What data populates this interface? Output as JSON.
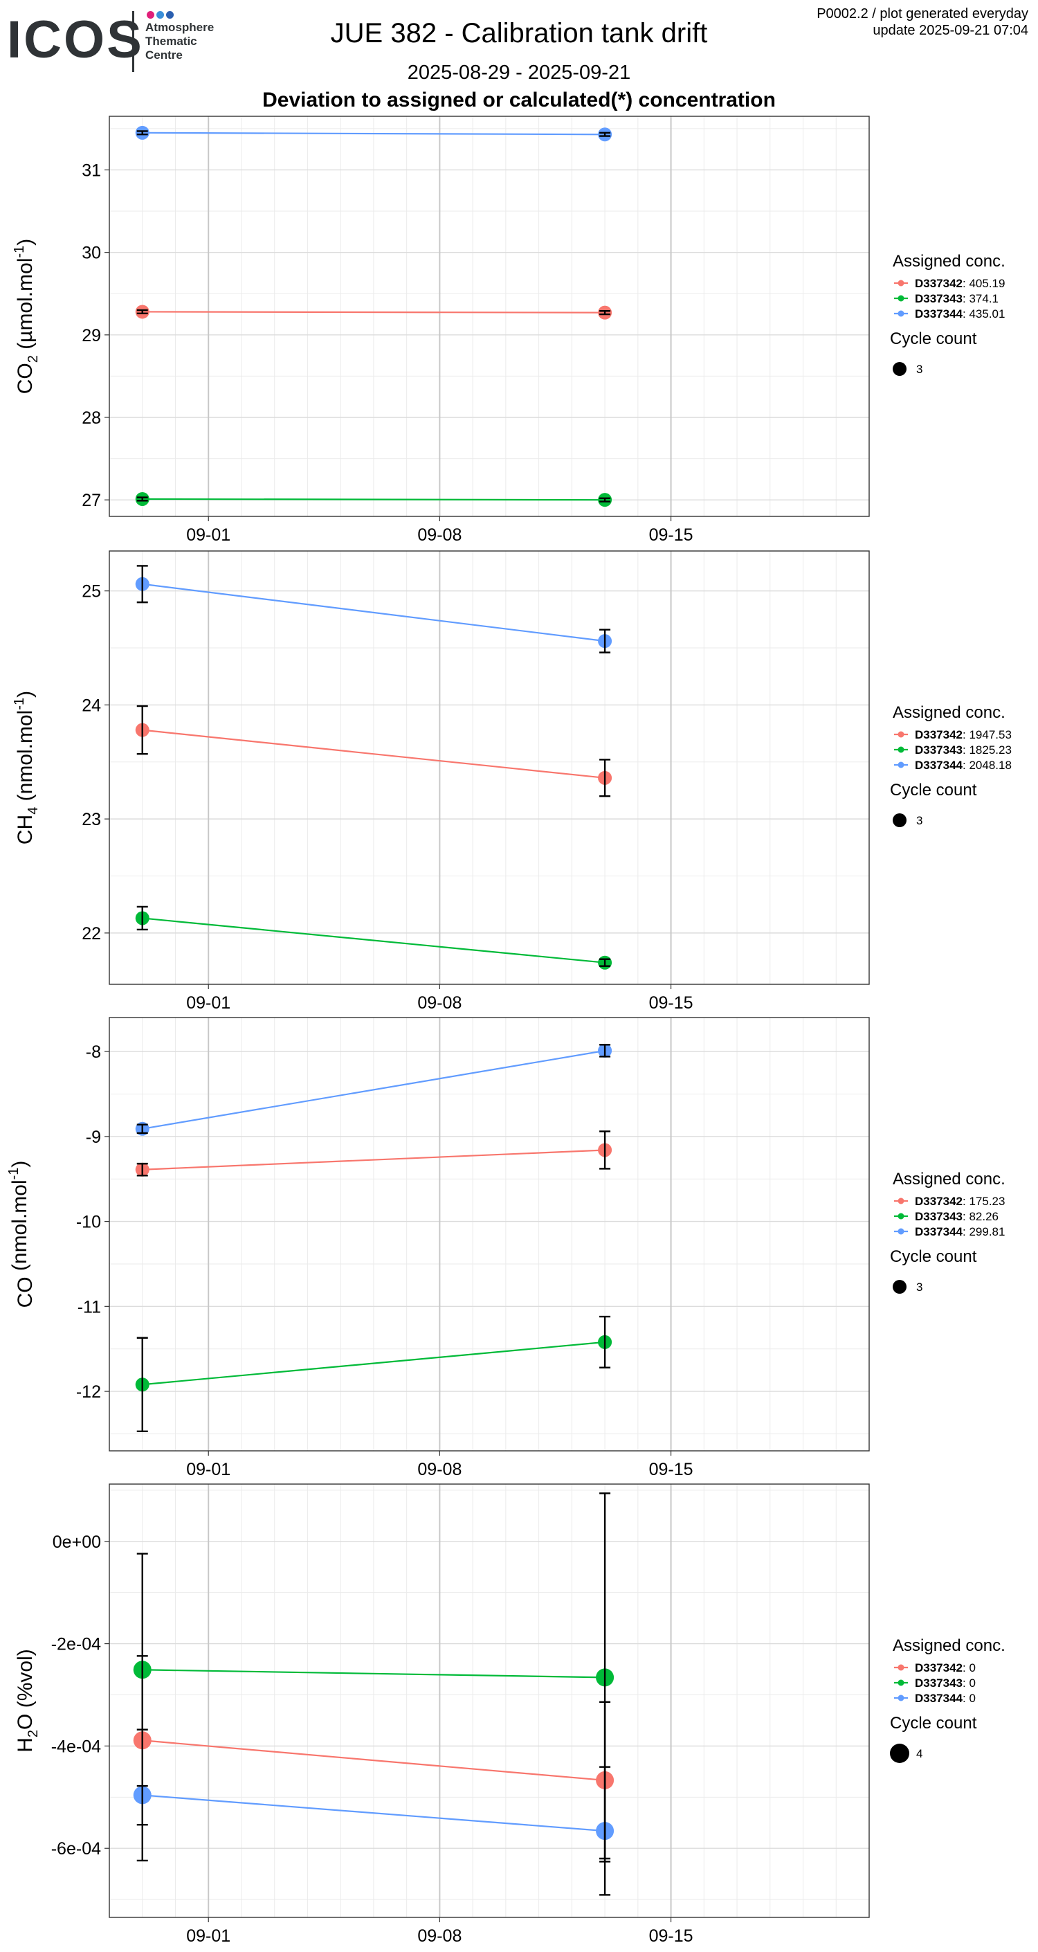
{
  "header": {
    "logo_text": "ICOS",
    "logo_sub": [
      "Atmosphere",
      "Thematic",
      "Centre"
    ],
    "logo_dot_colors": [
      "#e0207a",
      "#3a8fd9",
      "#2a5fb0"
    ],
    "title": "JUE 382 - Calibration tank drift",
    "date_range": "2025-08-29 - 2025-09-21",
    "subtitle": "Deviation to assigned or calculated(*) concentration",
    "meta_line1": "P0002.2 / plot generated everyday",
    "meta_line2": "update  2025-09-21 07:04"
  },
  "chart_data": [
    {
      "type": "line",
      "ylabel_main": "CO",
      "ylabel_sub": "2",
      "ylabel_rest": " (µmol.mol",
      "ylabel_sup": "-1",
      "ylabel_end": ")",
      "x": [
        "2025-08-30",
        "2025-09-13"
      ],
      "xlim": [
        "2025-08-29",
        "2025-09-21"
      ],
      "xticks": [
        "09-01",
        "09-08",
        "09-15"
      ],
      "xtick_dates": [
        "2025-09-01",
        "2025-09-08",
        "2025-09-15"
      ],
      "ylim": [
        26.8,
        31.65
      ],
      "yticks": [
        "27",
        "28",
        "29",
        "30",
        "31"
      ],
      "ytick_values": [
        27,
        28,
        29,
        30,
        31
      ],
      "series": [
        {
          "name": "D337342",
          "assigned": "405.19",
          "color": "#f8766d",
          "values": [
            29.28,
            29.27
          ],
          "err": [
            0.02,
            0.02
          ]
        },
        {
          "name": "D337343",
          "assigned": "374.1",
          "color": "#00ba38",
          "values": [
            27.01,
            27.0
          ],
          "err": [
            0.02,
            0.02
          ]
        },
        {
          "name": "D337344",
          "assigned": "435.01",
          "color": "#619cff",
          "values": [
            31.45,
            31.43
          ],
          "err": [
            0.02,
            0.02
          ]
        }
      ],
      "legend_title": "Assigned conc.",
      "size_title": "Cycle count",
      "size_value": "3",
      "point_radius": 10
    },
    {
      "type": "line",
      "ylabel_main": "CH",
      "ylabel_sub": "4",
      "ylabel_rest": " (nmol.mol",
      "ylabel_sup": "-1",
      "ylabel_end": ")",
      "x": [
        "2025-08-30",
        "2025-09-13"
      ],
      "xlim": [
        "2025-08-29",
        "2025-09-21"
      ],
      "xticks": [
        "09-01",
        "09-08",
        "09-15"
      ],
      "xtick_dates": [
        "2025-09-01",
        "2025-09-08",
        "2025-09-15"
      ],
      "ylim": [
        21.55,
        25.35
      ],
      "yticks": [
        "22",
        "23",
        "24",
        "25"
      ],
      "ytick_values": [
        22,
        23,
        24,
        25
      ],
      "series": [
        {
          "name": "D337342",
          "assigned": "1947.53",
          "color": "#f8766d",
          "values": [
            23.78,
            23.36
          ],
          "err": [
            0.21,
            0.16
          ]
        },
        {
          "name": "D337343",
          "assigned": "1825.23",
          "color": "#00ba38",
          "values": [
            22.13,
            21.74
          ],
          "err": [
            0.1,
            0.03
          ]
        },
        {
          "name": "D337344",
          "assigned": "2048.18",
          "color": "#619cff",
          "values": [
            25.06,
            24.56
          ],
          "err": [
            0.16,
            0.1
          ]
        }
      ],
      "legend_title": "Assigned conc.",
      "size_title": "Cycle count",
      "size_value": "3",
      "point_radius": 10
    },
    {
      "type": "line",
      "ylabel_main": "CO",
      "ylabel_sub": "",
      "ylabel_rest": " (nmol.mol",
      "ylabel_sup": "-1",
      "ylabel_end": ")",
      "x": [
        "2025-08-30",
        "2025-09-13"
      ],
      "xlim": [
        "2025-08-29",
        "2025-09-21"
      ],
      "xticks": [
        "09-01",
        "09-08",
        "09-15"
      ],
      "xtick_dates": [
        "2025-09-01",
        "2025-09-08",
        "2025-09-15"
      ],
      "ylim": [
        -12.7,
        -7.6
      ],
      "yticks": [
        "-12",
        "-11",
        "-10",
        "-9",
        "-8"
      ],
      "ytick_values": [
        -12,
        -11,
        -10,
        -9,
        -8
      ],
      "series": [
        {
          "name": "D337342",
          "assigned": "175.23",
          "color": "#f8766d",
          "values": [
            -9.39,
            -9.16
          ],
          "err": [
            0.07,
            0.22
          ]
        },
        {
          "name": "D337343",
          "assigned": "82.26",
          "color": "#00ba38",
          "values": [
            -11.92,
            -11.42
          ],
          "err": [
            0.55,
            0.3
          ]
        },
        {
          "name": "D337344",
          "assigned": "299.81",
          "color": "#619cff",
          "values": [
            -8.91,
            -7.99
          ],
          "err": [
            0.05,
            0.07
          ]
        }
      ],
      "legend_title": "Assigned conc.",
      "size_title": "Cycle count",
      "size_value": "3",
      "point_radius": 10
    },
    {
      "type": "line",
      "ylabel_main": "H",
      "ylabel_sub": "2",
      "ylabel_rest": "O (%vol)",
      "ylabel_sup": "",
      "ylabel_end": "",
      "x": [
        "2025-08-30",
        "2025-09-13"
      ],
      "xlim": [
        "2025-08-29",
        "2025-09-21"
      ],
      "xticks": [
        "09-01",
        "09-08",
        "09-15"
      ],
      "xtick_dates": [
        "2025-09-01",
        "2025-09-08",
        "2025-09-15"
      ],
      "ylim": [
        -0.000735,
        0.000112
      ],
      "yticks": [
        "-6e-04",
        "-4e-04",
        "-2e-04",
        "0e+00"
      ],
      "ytick_values": [
        -0.0006,
        -0.0004,
        -0.0002,
        0
      ],
      "series": [
        {
          "name": "D337342",
          "assigned": "0",
          "color": "#f8766d",
          "values": [
            -0.000389,
            -0.000467
          ],
          "err": [
            0.000165,
            0.000153
          ]
        },
        {
          "name": "D337343",
          "assigned": "0",
          "color": "#00ba38",
          "values": [
            -0.000251,
            -0.000266
          ],
          "err": [
            0.000227,
            0.00036
          ]
        },
        {
          "name": "D337344",
          "assigned": "0",
          "color": "#619cff",
          "values": [
            -0.000496,
            -0.000566
          ],
          "err": [
            0.000128,
            0.000125
          ]
        }
      ],
      "legend_title": "Assigned conc.",
      "size_title": "Cycle count",
      "size_value": "4",
      "point_radius": 13
    }
  ]
}
